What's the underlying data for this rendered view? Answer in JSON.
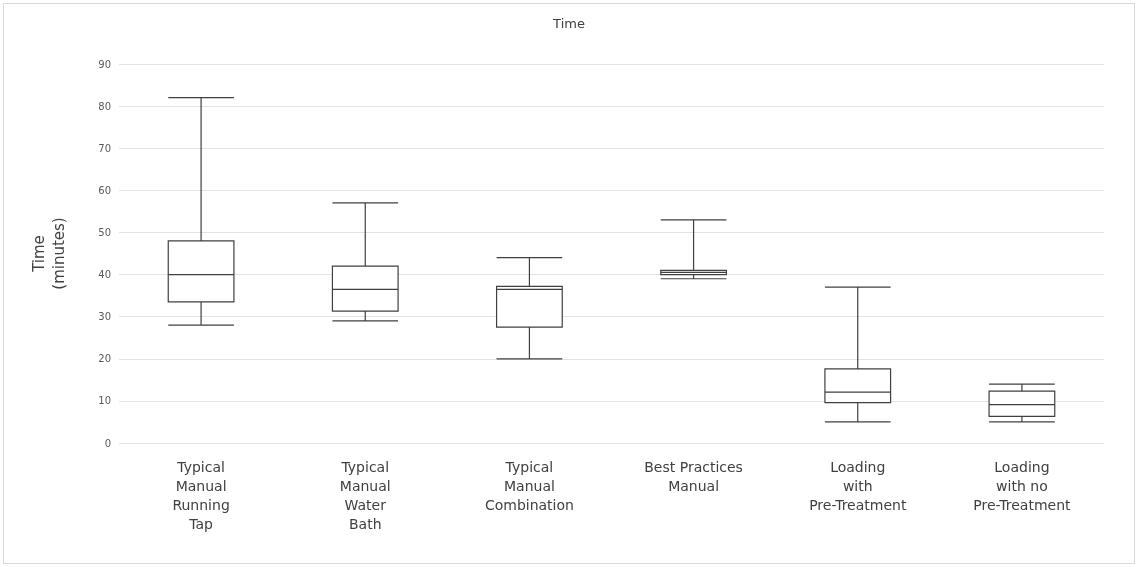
{
  "chart_data": {
    "type": "box",
    "title": "Time",
    "ylabel": "Time\n(minutes)",
    "categories": [
      "Typical\nManual\nRunning\nTap",
      "Typical\nManual\nWater\nBath",
      "Typical\nManual\nCombination",
      "Best Practices\nManual",
      "Loading\nwith\nPre-Treatment",
      "Loading\nwith no\nPre-Treatment"
    ],
    "boxes": [
      {
        "low": 28,
        "q1": 33.5,
        "median": 40,
        "q3": 48,
        "high": 82
      },
      {
        "low": 29,
        "q1": 31.3,
        "median": 36.5,
        "q3": 42,
        "high": 57
      },
      {
        "low": 20,
        "q1": 27.5,
        "median": 36.5,
        "q3": 37.2,
        "high": 44
      },
      {
        "low": 39,
        "q1": 40,
        "median": 40.5,
        "q3": 41,
        "high": 53
      },
      {
        "low": 5,
        "q1": 9.6,
        "median": 12.1,
        "q3": 17.6,
        "high": 37
      },
      {
        "low": 5,
        "q1": 6.3,
        "median": 9.1,
        "q3": 12.3,
        "high": 14
      }
    ],
    "color": "#404040",
    "ylim": [
      0,
      90
    ],
    "yticks": [
      0,
      10,
      20,
      30,
      40,
      50,
      60,
      70,
      80,
      90
    ],
    "grid": "y"
  }
}
